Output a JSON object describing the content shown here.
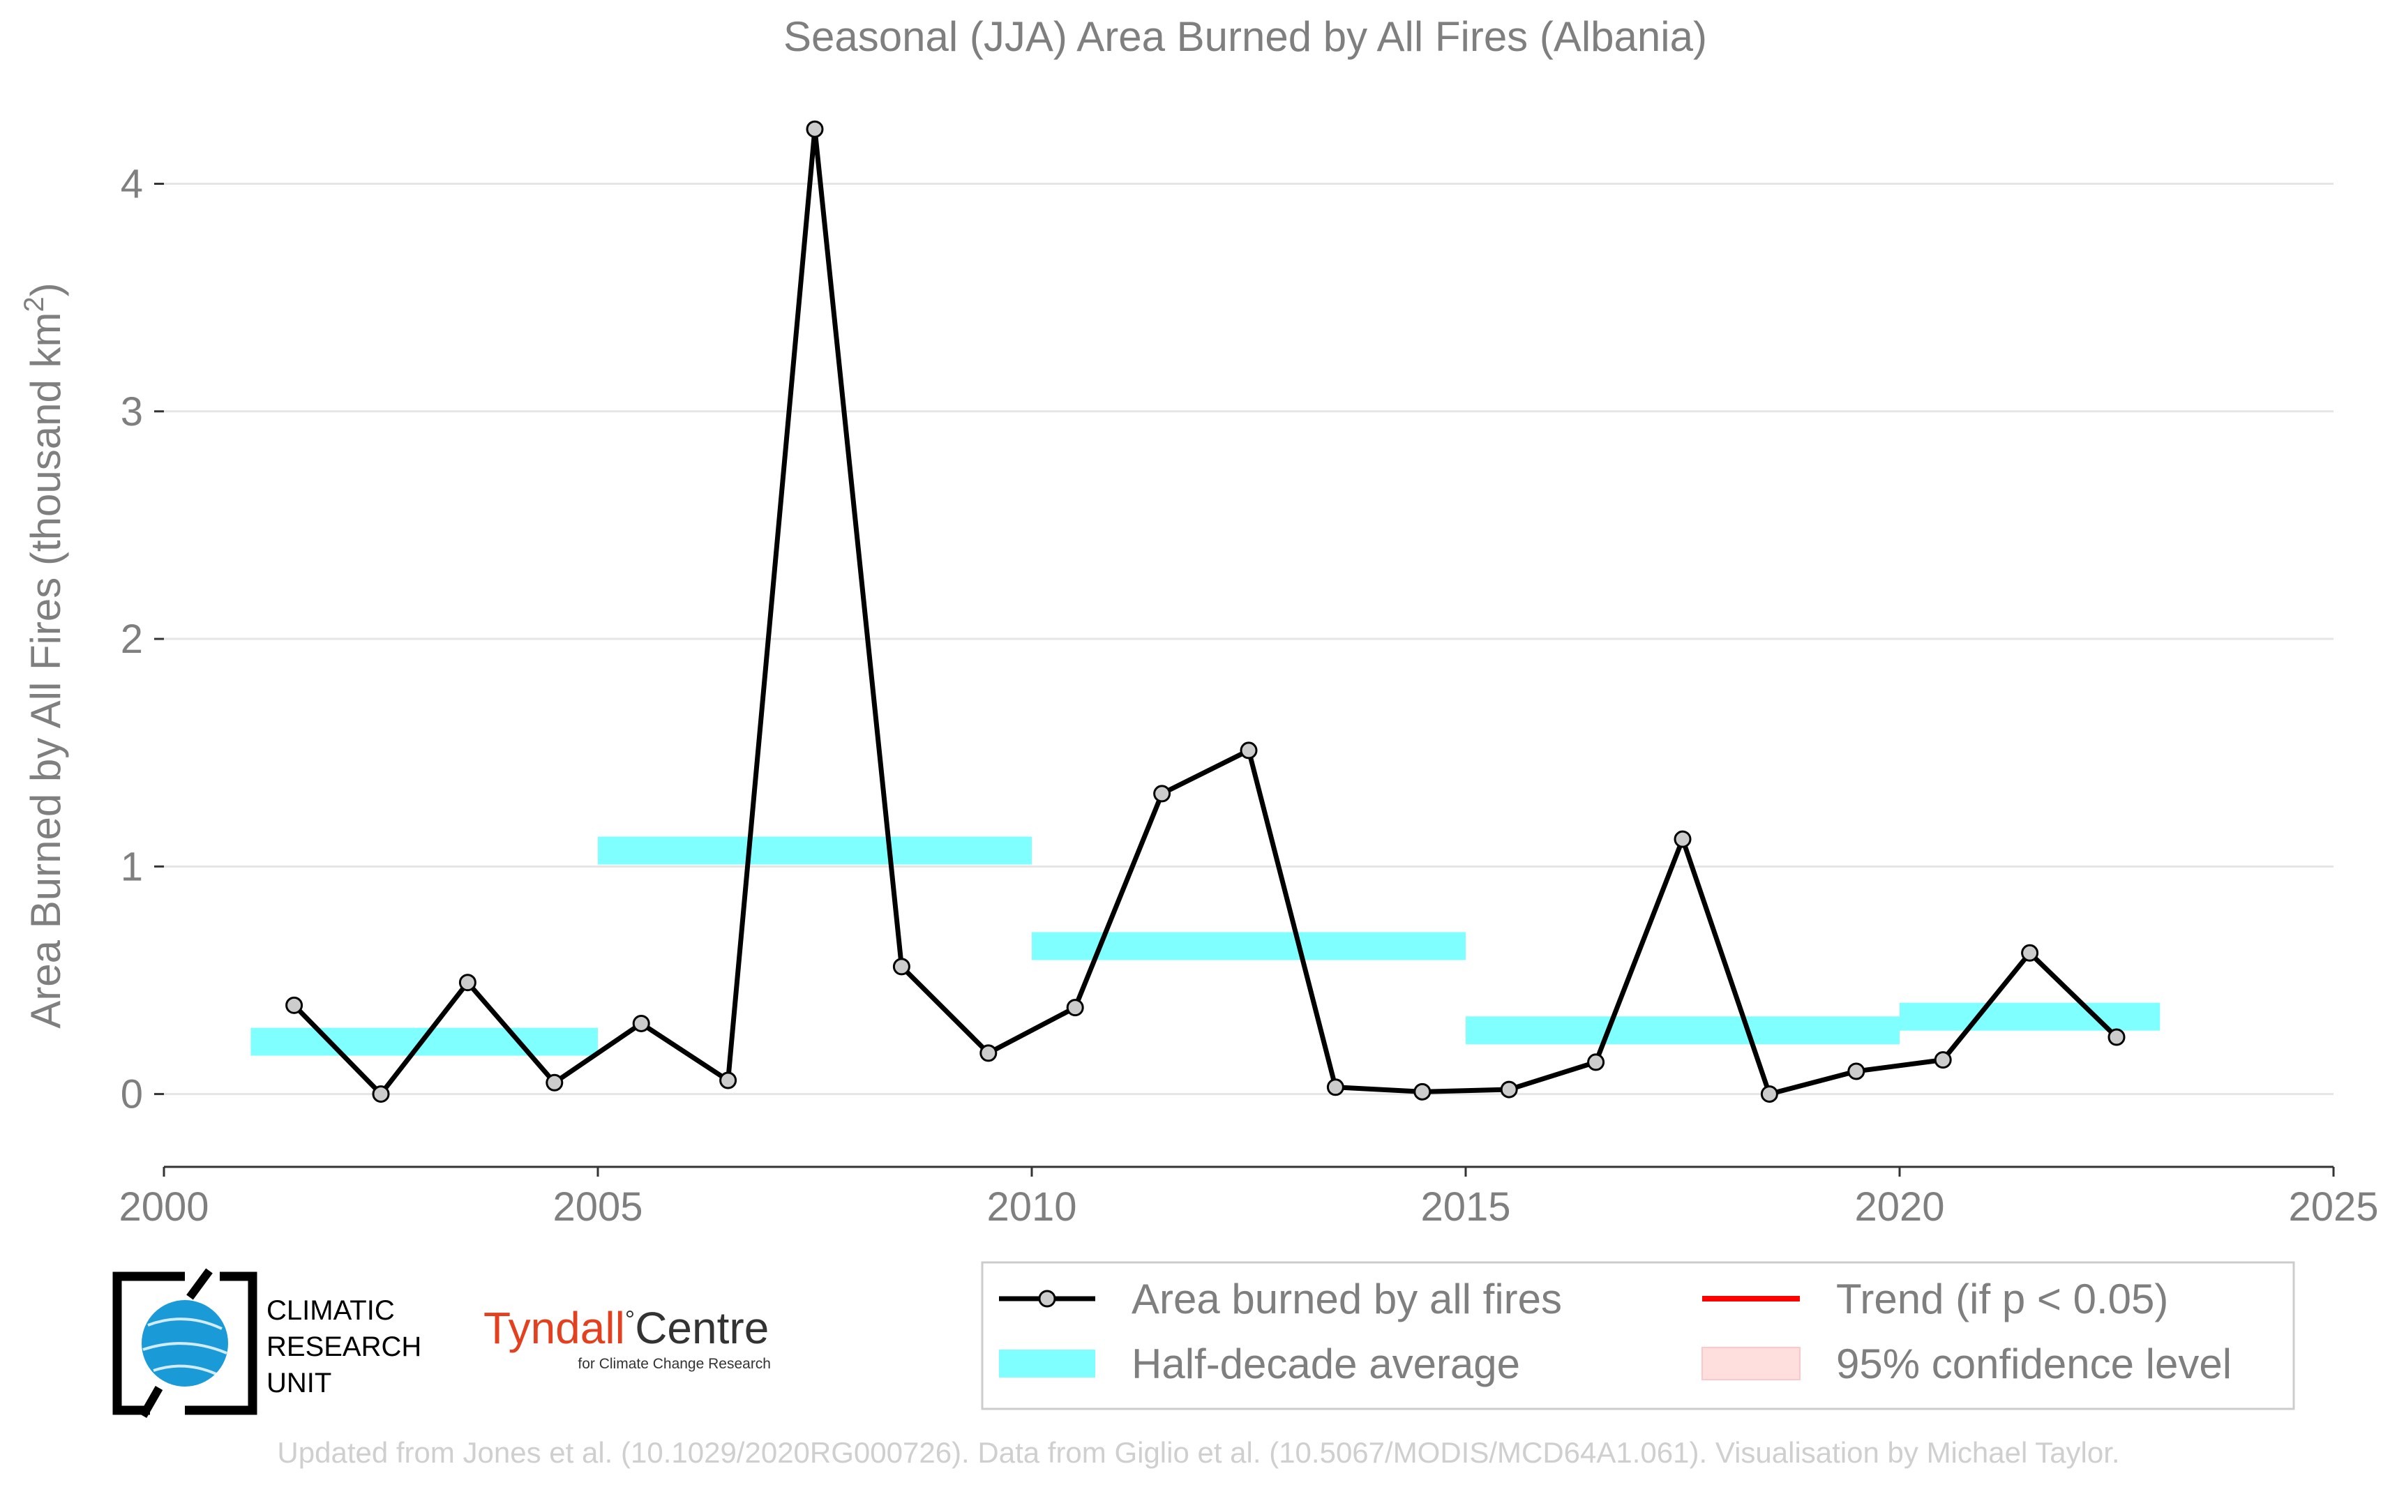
{
  "colors": {
    "line": "#000000",
    "marker_fill": "#cccccc",
    "half_decade": "#7fffff",
    "trend": "#ff0000",
    "confidence": "#ffdede",
    "text": "#7f7f7f",
    "grid": "#e5e5e5",
    "tyndall_red": "#e2401f",
    "cru_blue": "#1a9ad6"
  },
  "chart_data": {
    "type": "line",
    "title": "Seasonal (JJA) Area Burned by All Fires (Albania)",
    "ylabel": "Area Burned by All Fires (thousand km",
    "ylabel_sup": "2",
    "ylabel_close": ")",
    "xlabel": "",
    "xlim": [
      2000,
      2025
    ],
    "ylim": [
      -0.32,
      4.4
    ],
    "xticks": [
      2000,
      2005,
      2010,
      2015,
      2020,
      2025
    ],
    "yticks": [
      0,
      1,
      2,
      3,
      4
    ],
    "grid": true,
    "legend_position": "bottom-right",
    "series": [
      {
        "name": "Area burned by all fires",
        "x": [
          2001.5,
          2002.5,
          2003.5,
          2004.5,
          2005.5,
          2006.5,
          2007.5,
          2008.5,
          2009.5,
          2010.5,
          2011.5,
          2012.5,
          2013.5,
          2014.5,
          2015.5,
          2016.5,
          2017.5,
          2018.5,
          2019.5,
          2020.5,
          2021.5,
          2022.5
        ],
        "y": [
          0.39,
          0.0,
          0.49,
          0.05,
          0.31,
          0.06,
          4.24,
          0.56,
          0.18,
          0.38,
          1.32,
          1.51,
          0.03,
          0.01,
          0.02,
          0.14,
          1.12,
          0.0,
          0.1,
          0.15,
          0.62,
          0.25
        ]
      }
    ],
    "half_decade_average": {
      "name": "Half-decade average",
      "segments": [
        {
          "x_start": 2001,
          "x_end": 2005,
          "y": 0.23
        },
        {
          "x_start": 2005,
          "x_end": 2010,
          "y": 1.07
        },
        {
          "x_start": 2010,
          "x_end": 2015,
          "y": 0.65
        },
        {
          "x_start": 2015,
          "x_end": 2020,
          "y": 0.28
        },
        {
          "x_start": 2020,
          "x_end": 2023,
          "y": 0.34
        }
      ]
    },
    "legend": [
      {
        "label": "Area burned by all fires",
        "kind": "line-marker"
      },
      {
        "label": "Trend (if p < 0.05)",
        "kind": "trend"
      },
      {
        "label": "Half-decade average",
        "kind": "band"
      },
      {
        "label": "95% confidence level",
        "kind": "confidence"
      }
    ]
  },
  "logos": {
    "cru": [
      "CLIMATIC",
      "RESEARCH",
      "UNIT"
    ],
    "tyndall_name": "Tyndall",
    "tyndall_degree": "°",
    "tyndall_centre": "Centre",
    "tyndall_sub": "for Climate Change Research"
  },
  "credit": "Updated from Jones et al. (10.1029/2020RG000726). Data from Giglio et al. (10.5067/MODIS/MCD64A1.061). Visualisation by Michael Taylor."
}
